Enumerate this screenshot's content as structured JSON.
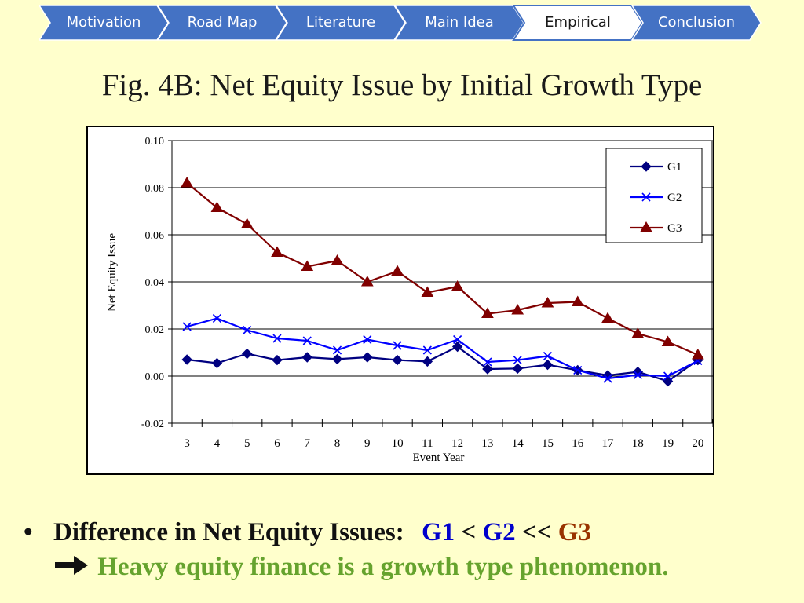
{
  "nav": {
    "tabs": [
      {
        "label": "Motivation",
        "active": false
      },
      {
        "label": "Road Map",
        "active": false
      },
      {
        "label": "Literature",
        "active": false
      },
      {
        "label": "Main Idea",
        "active": false
      },
      {
        "label": "Empirical",
        "active": true
      },
      {
        "label": "Conclusion",
        "active": false
      }
    ],
    "tab_color": "#4472C4",
    "active_color": "#FFFFFF"
  },
  "slide": {
    "title": "Fig. 4B: Net Equity Issue by Initial Growth Type"
  },
  "chart_data": {
    "type": "line",
    "title": "",
    "xlabel": "Event Year",
    "ylabel": "Net Equity Issue",
    "x": [
      3,
      4,
      5,
      6,
      7,
      8,
      9,
      10,
      11,
      12,
      13,
      14,
      15,
      16,
      17,
      18,
      19,
      20
    ],
    "ylim": [
      -0.02,
      0.1
    ],
    "yticks": [
      "-0.02",
      "0.00",
      "0.02",
      "0.04",
      "0.06",
      "0.08",
      "0.10"
    ],
    "grid": true,
    "legend": "top-right",
    "series": [
      {
        "name": "G1",
        "marker": "diamond",
        "color": "#000080",
        "values": [
          0.007,
          0.0055,
          0.0095,
          0.0068,
          0.008,
          0.0072,
          0.008,
          0.0068,
          0.0062,
          0.0125,
          0.003,
          0.0032,
          0.0048,
          0.0025,
          0.0003,
          0.0018,
          -0.0022,
          0.0068
        ]
      },
      {
        "name": "G2",
        "marker": "x",
        "color": "#0000FF",
        "values": [
          0.021,
          0.0245,
          0.0195,
          0.016,
          0.015,
          0.011,
          0.0155,
          0.013,
          0.011,
          0.0155,
          0.006,
          0.0068,
          0.0085,
          0.0025,
          -0.001,
          0.0005,
          0.0,
          0.0065
        ]
      },
      {
        "name": "G3",
        "marker": "triangle",
        "color": "#800000",
        "values": [
          0.082,
          0.0715,
          0.0645,
          0.0525,
          0.0465,
          0.049,
          0.04,
          0.0445,
          0.0355,
          0.038,
          0.0265,
          0.028,
          0.031,
          0.0315,
          0.0245,
          0.018,
          0.0145,
          0.009
        ]
      }
    ]
  },
  "bullet": {
    "text": "Difference in Net Equity Issues:",
    "g1": "G1",
    "lt": "<",
    "g2": "G2",
    "llt": "<<",
    "g3": "G3",
    "g1_color": "#0000CC",
    "g2_color": "#0000CC",
    "g3_color": "#993300",
    "conclusion": "Heavy equity finance is a growth type phenomenon.",
    "conclusion_color": "#66A32E"
  }
}
